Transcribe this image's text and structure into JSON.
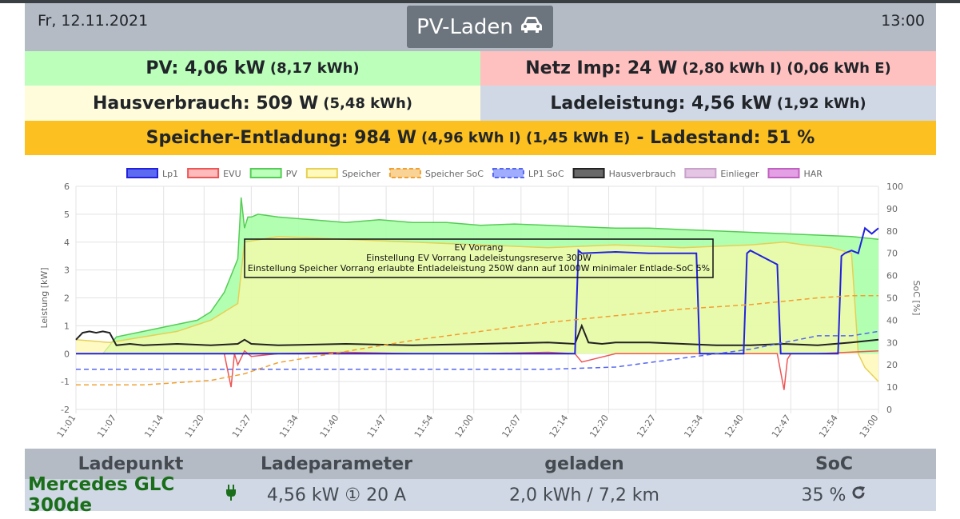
{
  "header": {
    "date": "Fr, 12.11.2021",
    "time": "13:00",
    "title": "PV-Laden",
    "title_icon": "car-icon"
  },
  "summary": {
    "pv": {
      "label": "PV: 4,06 kW",
      "detail": "(8,17 kWh)",
      "color": "#bbffbb"
    },
    "grid": {
      "label": "Netz Imp: 24 W",
      "detail": "(2,80 kWh I) (0,06 kWh E)",
      "color": "#ffc0c0"
    },
    "house": {
      "label": "Hausverbrauch: 509 W",
      "detail": "(5,48 kWh)",
      "color": "#fffcdc"
    },
    "charge": {
      "label": "Ladeleistung: 4,56 kW",
      "detail": "(1,92 kWh)",
      "color": "#d0d8e6"
    },
    "storage": {
      "label": "Speicher-Entladung: 984 W",
      "detail": "(4,96 kWh I) (1,45 kWh E)",
      "suffix": "- Ladestand: 51 %",
      "color": "#fcc021"
    }
  },
  "chart_data": {
    "type": "line",
    "legend": [
      {
        "name": "Lp1",
        "color": "#2222dd",
        "fill": "#3344ee",
        "dash": false
      },
      {
        "name": "EVU",
        "color": "#ee5555",
        "fill": "#ffaaaa",
        "dash": false
      },
      {
        "name": "PV",
        "color": "#55cc55",
        "fill": "#aaffaa",
        "dash": false
      },
      {
        "name": "Speicher",
        "color": "#e6d055",
        "fill": "#fff8aa",
        "dash": false
      },
      {
        "name": "Speicher SoC",
        "color": "#f0a030",
        "fill": "#f7c77a",
        "dash": true
      },
      {
        "name": "LP1 SoC",
        "color": "#5566ee",
        "fill": "#8899ff",
        "dash": true
      },
      {
        "name": "Hausverbrauch",
        "color": "#222222",
        "fill": "#444444",
        "dash": false
      },
      {
        "name": "Einlieger",
        "color": "#c9a0c9",
        "fill": "#ddb8dd",
        "dash": false
      },
      {
        "name": "HAR",
        "color": "#c060c0",
        "fill": "#dd88dd",
        "dash": false
      }
    ],
    "ylabel": "Leistung [kW]",
    "y2label": "SoC [%]",
    "ylim": [
      -2,
      6
    ],
    "y2lim": [
      0,
      100
    ],
    "yticks": [
      -2,
      -1,
      0,
      1,
      2,
      3,
      4,
      5,
      6
    ],
    "y2ticks": [
      0,
      10,
      20,
      30,
      40,
      50,
      60,
      70,
      80,
      90,
      100
    ],
    "xlim": [
      0,
      119
    ],
    "xticks": [
      {
        "t": 0,
        "label": "11:01"
      },
      {
        "t": 6,
        "label": "11:07"
      },
      {
        "t": 13,
        "label": "11:14"
      },
      {
        "t": 19,
        "label": "11:20"
      },
      {
        "t": 26,
        "label": "11:27"
      },
      {
        "t": 33,
        "label": "11:34"
      },
      {
        "t": 39,
        "label": "11:40"
      },
      {
        "t": 46,
        "label": "11:47"
      },
      {
        "t": 53,
        "label": "11:54"
      },
      {
        "t": 59,
        "label": "12:00"
      },
      {
        "t": 66,
        "label": "12:07"
      },
      {
        "t": 73,
        "label": "12:14"
      },
      {
        "t": 79,
        "label": "12:20"
      },
      {
        "t": 86,
        "label": "12:27"
      },
      {
        "t": 93,
        "label": "12:34"
      },
      {
        "t": 99,
        "label": "12:40"
      },
      {
        "t": 106,
        "label": "12:47"
      },
      {
        "t": 113,
        "label": "12:54"
      },
      {
        "t": 119,
        "label": "13:00"
      }
    ],
    "series": [
      {
        "name": "PV",
        "axis": "y",
        "fill": true,
        "x": [
          0,
          4,
          5,
          6,
          10,
          14,
          18,
          20,
          22,
          24,
          24.5,
          25,
          25.5,
          26,
          27,
          30,
          35,
          40,
          45,
          50,
          55,
          60,
          65,
          70,
          75,
          80,
          85,
          90,
          95,
          100,
          105,
          110,
          115,
          119
        ],
        "y": [
          0,
          0,
          0.3,
          0.6,
          0.8,
          1.0,
          1.2,
          1.5,
          2.2,
          3.4,
          5.6,
          4.5,
          4.9,
          4.9,
          5.0,
          4.9,
          4.8,
          4.7,
          4.8,
          4.7,
          4.7,
          4.6,
          4.65,
          4.6,
          4.55,
          4.5,
          4.5,
          4.45,
          4.4,
          4.35,
          4.3,
          4.25,
          4.2,
          4.1
        ]
      },
      {
        "name": "Speicher",
        "axis": "y",
        "fill": true,
        "x": [
          0,
          5,
          10,
          15,
          20,
          24,
          25,
          30,
          40,
          50,
          60,
          70,
          80,
          90,
          100,
          105,
          108,
          112,
          115,
          116,
          117,
          119
        ],
        "y": [
          0.5,
          0.4,
          0.6,
          0.8,
          1.2,
          1.8,
          4.0,
          4.2,
          4.1,
          4.0,
          3.9,
          3.8,
          3.9,
          3.8,
          3.9,
          4.0,
          3.9,
          3.8,
          3.6,
          0,
          -0.5,
          -1.0
        ]
      },
      {
        "name": "Hausverbrauch",
        "axis": "y",
        "fill": false,
        "x": [
          0,
          1,
          2,
          3,
          4,
          5,
          6,
          8,
          10,
          15,
          20,
          24,
          25,
          26,
          30,
          40,
          50,
          60,
          70,
          74,
          75,
          76,
          78,
          80,
          85,
          90,
          95,
          100,
          105,
          110,
          115,
          119
        ],
        "y": [
          0.5,
          0.75,
          0.8,
          0.75,
          0.8,
          0.75,
          0.3,
          0.35,
          0.3,
          0.35,
          0.3,
          0.35,
          0.5,
          0.35,
          0.3,
          0.35,
          0.3,
          0.35,
          0.4,
          0.35,
          1.0,
          0.4,
          0.35,
          0.4,
          0.4,
          0.35,
          0.3,
          0.3,
          0.35,
          0.3,
          0.4,
          0.5
        ]
      },
      {
        "name": "EVU",
        "axis": "y",
        "fill": false,
        "x": [
          0,
          20,
          22,
          23,
          23.5,
          24,
          25,
          26,
          30,
          40,
          50,
          60,
          70,
          74,
          75,
          80,
          90,
          100,
          104,
          105,
          105.5,
          106,
          110,
          119
        ],
        "y": [
          0,
          0,
          0,
          -1.2,
          0,
          -0.4,
          0.1,
          -0.1,
          0,
          0.05,
          0,
          0,
          0.05,
          0,
          -0.3,
          0,
          0,
          0,
          0,
          -1.3,
          -0.2,
          0,
          0,
          0.1
        ]
      },
      {
        "name": "Lp1",
        "axis": "y",
        "fill": false,
        "x": [
          0,
          74,
          74.5,
          75,
          80,
          85,
          90,
          92,
          92.5,
          99,
          99.5,
          100,
          104,
          104.5,
          105,
          113,
          113.5,
          114,
          115,
          116,
          117,
          118,
          119
        ],
        "y": [
          0,
          0,
          3.7,
          3.6,
          3.65,
          3.6,
          3.6,
          3.6,
          0,
          0,
          3.6,
          3.7,
          3.2,
          0,
          0,
          0,
          3.5,
          3.6,
          3.7,
          3.6,
          4.5,
          4.3,
          4.5
        ]
      },
      {
        "name": "Speicher SoC",
        "axis": "y2",
        "fill": false,
        "x": [
          0,
          10,
          20,
          25,
          30,
          40,
          50,
          60,
          70,
          80,
          90,
          100,
          110,
          115,
          119
        ],
        "y": [
          11,
          11,
          13,
          16,
          21,
          26,
          31,
          35,
          39,
          42,
          45,
          47,
          50,
          51,
          51
        ]
      },
      {
        "name": "LP1 SoC",
        "axis": "y2",
        "fill": false,
        "x": [
          0,
          20,
          30,
          50,
          60,
          70,
          80,
          85,
          90,
          95,
          100,
          105,
          110,
          115,
          119
        ],
        "y": [
          18,
          18,
          18,
          18,
          18,
          18,
          19,
          21,
          23,
          25,
          27,
          30,
          33,
          33,
          35
        ]
      }
    ],
    "annotation": {
      "lines": [
        "EV Vorrang",
        "Einstellung EV Vorrang  Ladeleistungsreserve 300W",
        "Einstellung Speicher Vorrang erlaubte Entladeleistung 250W dann auf 1000W  minimaler Entlade-SoC 5%"
      ]
    },
    "grid": true,
    "legend_position": "top"
  },
  "table": {
    "headers": [
      "Ladepunkt",
      "Ladeparameter",
      "geladen",
      "SoC"
    ],
    "row": {
      "name": "Mercedes GLC 300de",
      "name_icon": "plug-icon",
      "params": "4,56 kW ① 20 A",
      "charged": "2,0 kWh / 7,2 km",
      "soc": "35 %",
      "soc_icon": "refresh-icon"
    }
  }
}
